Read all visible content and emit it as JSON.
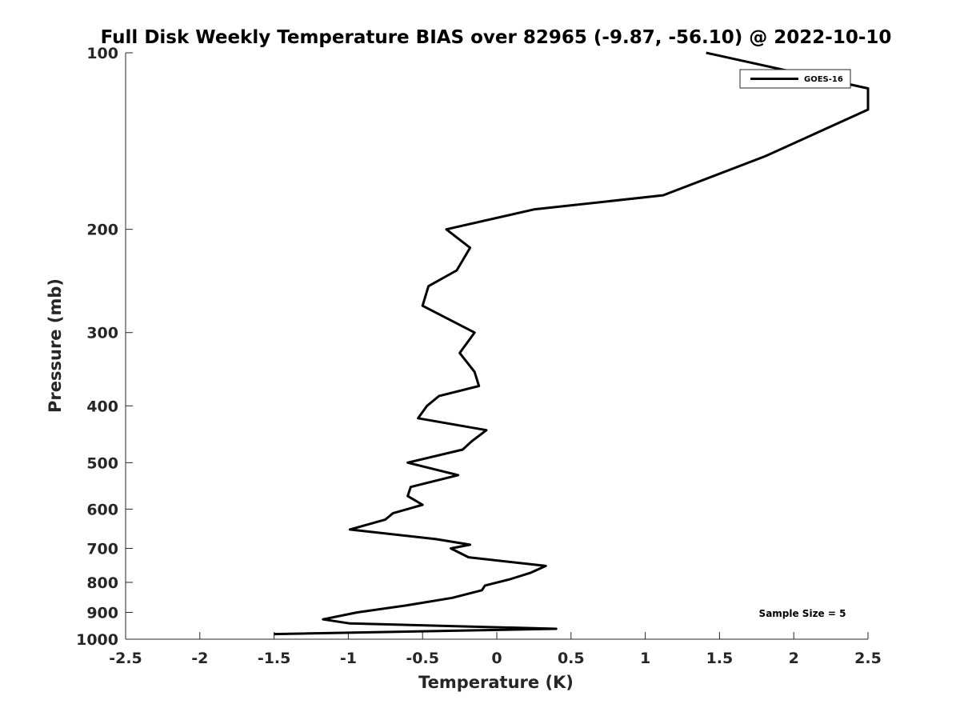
{
  "chart_data": {
    "type": "line",
    "title": "Full Disk Weekly Temperature BIAS over 82965 (-9.87, -56.10) @ 2022-10-10",
    "xlabel": "Temperature (K)",
    "ylabel": "Pressure (mb)",
    "xlim": [
      -2.5,
      2.5
    ],
    "ylim": [
      100,
      1000
    ],
    "yscale": "log",
    "yreversed": true,
    "x_ticks": [
      -2.5,
      -2,
      -1.5,
      -1,
      -0.5,
      0,
      0.5,
      1,
      1.5,
      2,
      2.5
    ],
    "x_tick_labels": [
      "-2.5",
      "-2",
      "-1.5",
      "-1",
      "-0.5",
      "0",
      "0.5",
      "1",
      "1.5",
      "2",
      "2.5"
    ],
    "y_ticks": [
      100,
      200,
      300,
      400,
      500,
      600,
      700,
      800,
      900,
      1000
    ],
    "y_tick_labels": [
      "100",
      "200",
      "300",
      "400",
      "500",
      "600",
      "700",
      "800",
      "900",
      "1000"
    ],
    "grid": false,
    "legend": {
      "position": "top-right",
      "entries": [
        "GOES-16"
      ]
    },
    "annotation": "Sample Size = 5",
    "series": [
      {
        "name": "GOES-16",
        "color": "#000000",
        "points": [
          [
            1.41,
            100
          ],
          [
            2.5,
            115
          ],
          [
            2.5,
            125
          ],
          [
            1.81,
            150
          ],
          [
            1.12,
            175
          ],
          [
            0.25,
            185
          ],
          [
            -0.34,
            200
          ],
          [
            -0.18,
            215
          ],
          [
            -0.27,
            235
          ],
          [
            -0.46,
            250
          ],
          [
            -0.5,
            270
          ],
          [
            -0.15,
            300
          ],
          [
            -0.25,
            325
          ],
          [
            -0.15,
            350
          ],
          [
            -0.12,
            370
          ],
          [
            -0.39,
            385
          ],
          [
            -0.47,
            400
          ],
          [
            -0.53,
            420
          ],
          [
            -0.07,
            440
          ],
          [
            -0.17,
            460
          ],
          [
            -0.23,
            475
          ],
          [
            -0.6,
            500
          ],
          [
            -0.26,
            525
          ],
          [
            -0.58,
            550
          ],
          [
            -0.6,
            570
          ],
          [
            -0.5,
            590
          ],
          [
            -0.7,
            610
          ],
          [
            -0.75,
            625
          ],
          [
            -0.99,
            650
          ],
          [
            -0.41,
            675
          ],
          [
            -0.18,
            690
          ],
          [
            -0.31,
            700
          ],
          [
            -0.19,
            725
          ],
          [
            0.33,
            750
          ],
          [
            0.23,
            770
          ],
          [
            0.09,
            790
          ],
          [
            -0.08,
            810
          ],
          [
            -0.1,
            825
          ],
          [
            -0.3,
            850
          ],
          [
            -0.6,
            875
          ],
          [
            -0.94,
            900
          ],
          [
            -1.17,
            925
          ],
          [
            -0.99,
            940
          ],
          [
            0.4,
            960
          ],
          [
            -1.5,
            980
          ]
        ]
      }
    ]
  }
}
